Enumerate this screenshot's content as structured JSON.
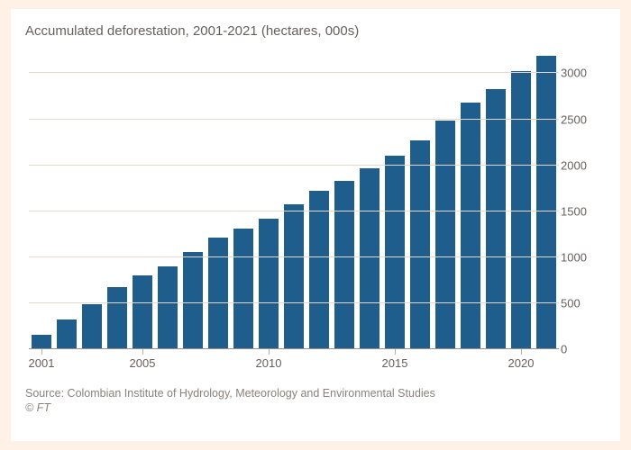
{
  "page": {
    "outer_bg": "#fff1e5",
    "card_bg": "#ffffff"
  },
  "subtitle": "Accumulated deforestation, 2001-2021 (hectares, 000s)",
  "chart": {
    "type": "bar",
    "years": [
      2001,
      2002,
      2003,
      2004,
      2005,
      2006,
      2007,
      2008,
      2009,
      2010,
      2011,
      2012,
      2013,
      2014,
      2015,
      2016,
      2017,
      2018,
      2019,
      2020,
      2021
    ],
    "values": [
      160,
      320,
      490,
      680,
      800,
      900,
      1060,
      1210,
      1310,
      1420,
      1580,
      1720,
      1830,
      1970,
      2100,
      2270,
      2490,
      2680,
      2830,
      3020,
      3190
    ],
    "bar_color": "#1f5d8c",
    "grid_color": "#e4d9ce",
    "baseline_color": "#99908a",
    "tick_color": "#b7afa7",
    "label_color": "#66605c",
    "y": {
      "min": 0,
      "max": 3200,
      "step": 500
    },
    "x_ticks": [
      2001,
      2005,
      2010,
      2015,
      2020
    ],
    "label_fontsize": 13
  },
  "source": "Source: Colombian Institute of Hydrology, Meteorology and Environmental Studies",
  "copyright": "© FT"
}
